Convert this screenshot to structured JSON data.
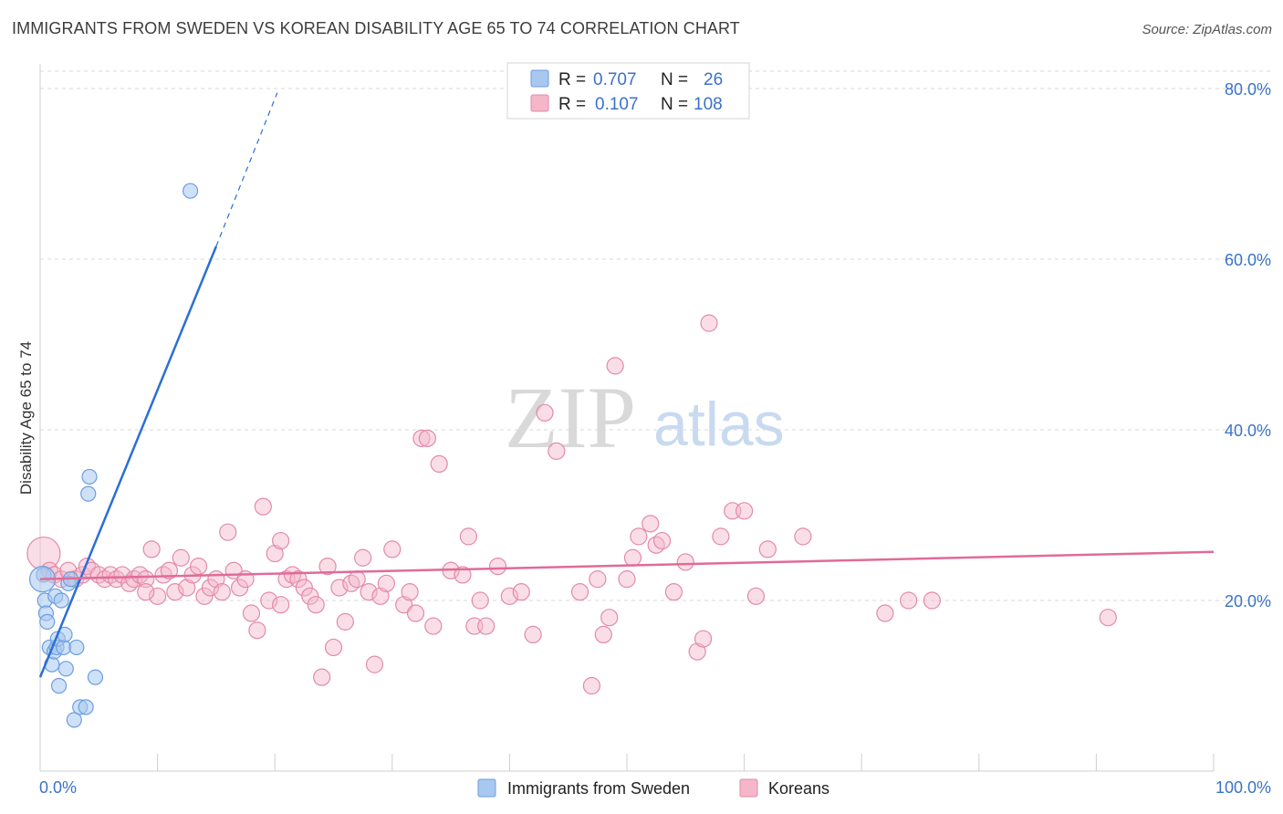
{
  "title": "IMMIGRANTS FROM SWEDEN VS KOREAN DISABILITY AGE 65 TO 74 CORRELATION CHART",
  "source": "Source: ZipAtlas.com",
  "watermark": {
    "zip": "ZIP",
    "atlas": "atlas"
  },
  "colors": {
    "blue_fill": "#a8c8f0",
    "blue_stroke": "#6c9ee0",
    "blue_line": "#2a6fd6",
    "pink_fill": "#f5b6c9",
    "pink_stroke": "#e38aa8",
    "pink_line": "#e06b98",
    "axis_text": "#3a72c8",
    "grid": "#d8d8d8"
  },
  "legend": {
    "rows": [
      {
        "r_label": "R =",
        "r_value": "0.707",
        "n_label": "N =",
        "n_value": "26"
      },
      {
        "r_label": "R =",
        "r_value": "0.107",
        "n_label": "N =",
        "n_value": "108"
      }
    ]
  },
  "chart_data": {
    "type": "scatter",
    "title": "IMMIGRANTS FROM SWEDEN VS KOREAN DISABILITY AGE 65 TO 74 CORRELATION CHART",
    "xlabel": "",
    "ylabel": "Disability Age 65 to 74",
    "xlim": [
      0,
      100
    ],
    "ylim": [
      0,
      82
    ],
    "x_tick_labels": [
      "0.0%",
      "100.0%"
    ],
    "y_ticks": [
      20,
      40,
      60,
      80
    ],
    "y_tick_labels": [
      "20.0%",
      "40.0%",
      "60.0%",
      "80.0%"
    ],
    "grid": true,
    "legend_position": "top-center",
    "series": [
      {
        "name": "Immigrants from Sweden",
        "color": "blue",
        "points": [
          [
            0.3,
            23.0
          ],
          [
            0.4,
            20.0
          ],
          [
            0.5,
            18.5
          ],
          [
            0.6,
            17.5
          ],
          [
            0.8,
            14.5
          ],
          [
            1.0,
            12.5
          ],
          [
            1.2,
            14.0
          ],
          [
            1.3,
            20.5
          ],
          [
            1.4,
            14.5
          ],
          [
            1.5,
            15.5
          ],
          [
            1.6,
            10.0
          ],
          [
            1.8,
            20.0
          ],
          [
            2.0,
            14.5
          ],
          [
            2.1,
            16.0
          ],
          [
            2.2,
            12.0
          ],
          [
            2.4,
            22.0
          ],
          [
            2.6,
            22.5
          ],
          [
            2.9,
            6.0
          ],
          [
            3.1,
            14.5
          ],
          [
            3.4,
            7.5
          ],
          [
            3.9,
            7.5
          ],
          [
            4.1,
            32.5
          ],
          [
            4.2,
            34.5
          ],
          [
            4.7,
            11.0
          ],
          [
            12.8,
            68.0
          ],
          [
            0.2,
            22.5
          ]
        ],
        "trendline": {
          "x0": 0.0,
          "y0": 11.0,
          "x1": 15.0,
          "y1": 61.5,
          "dashed_to_x": 20.2,
          "dashed_to_y": 79.5
        },
        "r": 0.707,
        "n": 26
      },
      {
        "name": "Koreans",
        "color": "pink",
        "points": [
          [
            0.3,
            25.5
          ],
          [
            0.8,
            23.5
          ],
          [
            1.2,
            23.0
          ],
          [
            1.8,
            22.5
          ],
          [
            2.4,
            23.5
          ],
          [
            3.0,
            22.5
          ],
          [
            3.6,
            23.0
          ],
          [
            4.0,
            24.0
          ],
          [
            4.4,
            23.5
          ],
          [
            5.0,
            23.0
          ],
          [
            5.5,
            22.5
          ],
          [
            6.0,
            23.0
          ],
          [
            6.5,
            22.5
          ],
          [
            7.0,
            23.0
          ],
          [
            7.6,
            22.0
          ],
          [
            8.0,
            22.5
          ],
          [
            8.5,
            23.0
          ],
          [
            9.0,
            22.5
          ],
          [
            9.5,
            26.0
          ],
          [
            10.0,
            20.5
          ],
          [
            10.5,
            23.0
          ],
          [
            11.0,
            23.5
          ],
          [
            11.5,
            21.0
          ],
          [
            12.0,
            25.0
          ],
          [
            12.5,
            21.5
          ],
          [
            13.0,
            23.0
          ],
          [
            13.5,
            24.0
          ],
          [
            14.0,
            20.5
          ],
          [
            14.5,
            21.5
          ],
          [
            15.0,
            22.5
          ],
          [
            15.5,
            21.0
          ],
          [
            16.0,
            28.0
          ],
          [
            16.5,
            23.5
          ],
          [
            17.0,
            21.5
          ],
          [
            17.5,
            22.5
          ],
          [
            18.0,
            18.5
          ],
          [
            18.5,
            16.5
          ],
          [
            19.0,
            31.0
          ],
          [
            19.5,
            20.0
          ],
          [
            20.0,
            25.5
          ],
          [
            20.5,
            19.5
          ],
          [
            21.0,
            22.5
          ],
          [
            21.5,
            23.0
          ],
          [
            22.0,
            22.5
          ],
          [
            22.5,
            21.5
          ],
          [
            23.0,
            20.5
          ],
          [
            23.5,
            19.5
          ],
          [
            24.0,
            11.0
          ],
          [
            24.5,
            24.0
          ],
          [
            25.0,
            14.5
          ],
          [
            25.5,
            21.5
          ],
          [
            26.0,
            17.5
          ],
          [
            26.5,
            22.0
          ],
          [
            27.0,
            22.5
          ],
          [
            27.5,
            25.0
          ],
          [
            28.0,
            21.0
          ],
          [
            28.5,
            12.5
          ],
          [
            29.0,
            20.5
          ],
          [
            29.5,
            22.0
          ],
          [
            30.0,
            26.0
          ],
          [
            31.0,
            19.5
          ],
          [
            31.5,
            21.0
          ],
          [
            32.0,
            18.5
          ],
          [
            32.5,
            39.0
          ],
          [
            33.0,
            39.0
          ],
          [
            33.5,
            17.0
          ],
          [
            34.0,
            36.0
          ],
          [
            35.0,
            23.5
          ],
          [
            36.0,
            23.0
          ],
          [
            36.5,
            27.5
          ],
          [
            37.0,
            17.0
          ],
          [
            37.5,
            20.0
          ],
          [
            38.0,
            17.0
          ],
          [
            39.0,
            24.0
          ],
          [
            40.0,
            20.5
          ],
          [
            41.0,
            21.0
          ],
          [
            42.0,
            16.0
          ],
          [
            43.0,
            42.0
          ],
          [
            44.0,
            37.5
          ],
          [
            46.0,
            21.0
          ],
          [
            47.0,
            10.0
          ],
          [
            47.5,
            22.5
          ],
          [
            48.0,
            16.0
          ],
          [
            48.5,
            18.0
          ],
          [
            49.0,
            47.5
          ],
          [
            50.0,
            22.5
          ],
          [
            50.5,
            25.0
          ],
          [
            51.0,
            27.5
          ],
          [
            52.0,
            29.0
          ],
          [
            52.5,
            26.5
          ],
          [
            53.0,
            27.0
          ],
          [
            54.0,
            21.0
          ],
          [
            55.0,
            24.5
          ],
          [
            56.0,
            14.0
          ],
          [
            56.5,
            15.5
          ],
          [
            57.0,
            52.5
          ],
          [
            58.0,
            27.5
          ],
          [
            59.0,
            30.5
          ],
          [
            60.0,
            30.5
          ],
          [
            61.0,
            20.5
          ],
          [
            62.0,
            26.0
          ],
          [
            65.0,
            27.5
          ],
          [
            72.0,
            18.5
          ],
          [
            74.0,
            20.0
          ],
          [
            76.0,
            20.0
          ],
          [
            91.0,
            18.0
          ],
          [
            20.5,
            27.0
          ],
          [
            9.0,
            21.0
          ]
        ],
        "trendline": {
          "x0": 0.0,
          "y0": 22.5,
          "x1": 100.0,
          "y1": 25.7
        },
        "r": 0.107,
        "n": 108
      }
    ]
  },
  "bottom_legend": [
    {
      "label": "Immigrants from Sweden",
      "color": "blue"
    },
    {
      "label": "Koreans",
      "color": "pink"
    }
  ]
}
